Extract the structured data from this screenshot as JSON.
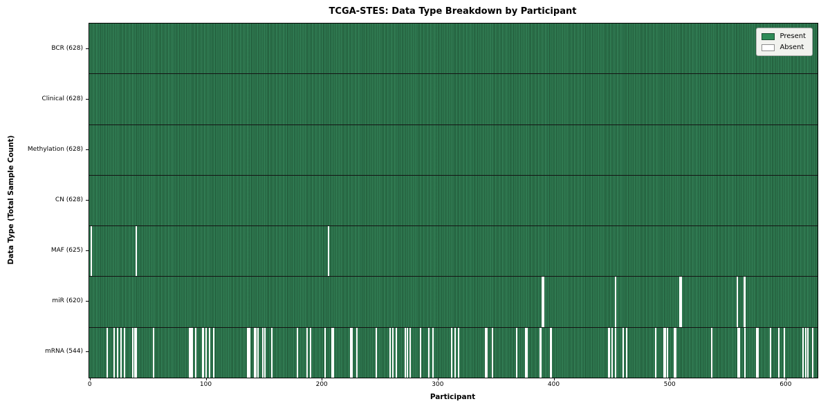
{
  "title": "TCGA-STES: Data Type Breakdown by Participant",
  "legend": {
    "present_label": "Present",
    "absent_label": "Absent"
  },
  "colors": {
    "present": "#2e7d52",
    "present_dark": "#1f5435",
    "present_light": "#3a8a5f",
    "absent": "#ffffff",
    "frame": "#000000",
    "legend_bg": "#f1f2ee",
    "legend_border": "#b0b0b0"
  },
  "chart_data": {
    "type": "heatmap",
    "title": "TCGA-STES: Data Type Breakdown by Participant",
    "xlabel": "Participant",
    "ylabel": "Data Type (Total Sample Count)",
    "legend_entries": [
      {
        "label": "Present",
        "color": "#2e8b57"
      },
      {
        "label": "Absent",
        "color": "#ffffff"
      }
    ],
    "legend_position": "upper right",
    "grid": false,
    "n_participants": 628,
    "xlim": [
      -0.5,
      627.5
    ],
    "x_ticks": [
      0,
      100,
      200,
      300,
      400,
      500,
      600
    ],
    "rows": [
      {
        "label": "BCR (628)",
        "name": "BCR",
        "present_count": 628,
        "absent_participants": []
      },
      {
        "label": "Clinical (628)",
        "name": "Clinical",
        "present_count": 628,
        "absent_participants": []
      },
      {
        "label": "Methylation (628)",
        "name": "Methylation",
        "present_count": 628,
        "absent_participants": []
      },
      {
        "label": "CN (628)",
        "name": "CN",
        "present_count": 628,
        "absent_participants": []
      },
      {
        "label": "MAF (625)",
        "name": "MAF",
        "present_count": 625,
        "absent_participants": [
          1,
          40,
          206
        ]
      },
      {
        "label": "miR (620)",
        "name": "miR",
        "present_count": 620,
        "absent_participants": [
          390,
          391,
          453,
          509,
          510,
          558,
          564,
          565
        ]
      },
      {
        "label": "mRNA (544)",
        "name": "mRNA",
        "present_count": 544,
        "absent_participants": [
          15,
          21,
          24,
          27,
          30,
          37,
          39,
          40,
          55,
          86,
          87,
          88,
          91,
          97,
          98,
          100,
          103,
          107,
          136,
          137,
          138,
          142,
          143,
          145,
          149,
          151,
          157,
          179,
          187,
          190,
          203,
          209,
          210,
          225,
          226,
          230,
          247,
          259,
          261,
          264,
          272,
          274,
          276,
          285,
          292,
          296,
          312,
          315,
          318,
          341,
          342,
          347,
          368,
          376,
          377,
          388,
          389,
          397,
          398,
          447,
          448,
          450,
          453,
          460,
          463,
          488,
          495,
          496,
          498,
          504,
          505,
          536,
          559,
          560,
          565,
          575,
          576,
          587,
          594,
          599,
          615,
          617,
          619,
          623
        ]
      }
    ]
  }
}
